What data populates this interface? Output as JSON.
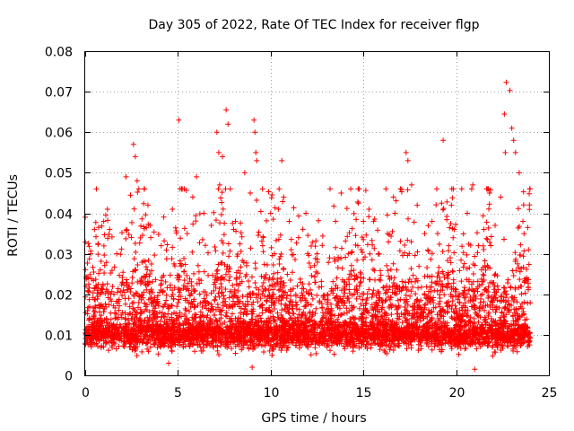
{
  "chart_data": {
    "type": "scatter",
    "title": "Day 305 of 2022, Rate Of TEC Index for receiver flgp",
    "xlabel": "GPS time / hours",
    "ylabel": "ROTI / TECUs",
    "xlim": [
      0,
      25
    ],
    "ylim": [
      0,
      0.08
    ],
    "xticks": [
      0,
      5,
      10,
      15,
      20,
      25
    ],
    "xtick_labels": [
      "0",
      "5",
      "10",
      "15",
      "20",
      "25"
    ],
    "yticks": [
      0,
      0.01,
      0.02,
      0.03,
      0.04,
      0.05,
      0.06,
      0.07,
      0.08
    ],
    "ytick_labels": [
      "0",
      "0.01",
      "0.02",
      "0.03",
      "0.04",
      "0.05",
      "0.06",
      "0.07",
      "0.08"
    ],
    "grid": true,
    "marker": "plus",
    "color": "#ff0000",
    "x_data_range": [
      0,
      24
    ],
    "note": "dense cloud of ROTI points; representative notable values listed",
    "series": [
      {
        "name": "ROTI",
        "points": [
          [
            0.1,
            0.012
          ],
          [
            0.3,
            0.03
          ],
          [
            0.5,
            0.036
          ],
          [
            0.8,
            0.02
          ],
          [
            1.0,
            0.038
          ],
          [
            1.2,
            0.041
          ],
          [
            1.7,
            0.03
          ],
          [
            2.2,
            0.049
          ],
          [
            2.6,
            0.057
          ],
          [
            2.7,
            0.054
          ],
          [
            2.8,
            0.048
          ],
          [
            3.5,
            0.037
          ],
          [
            4.1,
            0.032
          ],
          [
            4.7,
            0.041
          ],
          [
            5.05,
            0.063
          ],
          [
            5.5,
            0.035
          ],
          [
            5.8,
            0.044
          ],
          [
            6.0,
            0.049
          ],
          [
            6.4,
            0.04
          ],
          [
            6.8,
            0.037
          ],
          [
            7.1,
            0.06
          ],
          [
            7.2,
            0.055
          ],
          [
            7.25,
            0.047
          ],
          [
            7.4,
            0.054
          ],
          [
            7.6,
            0.0655
          ],
          [
            7.7,
            0.062
          ],
          [
            8.1,
            0.038
          ],
          [
            8.6,
            0.05
          ],
          [
            8.9,
            0.045
          ],
          [
            9.1,
            0.063
          ],
          [
            9.15,
            0.06
          ],
          [
            9.2,
            0.055
          ],
          [
            9.25,
            0.053
          ],
          [
            9.6,
            0.034
          ],
          [
            10.0,
            0.04
          ],
          [
            10.2,
            0.03
          ],
          [
            10.6,
            0.053
          ],
          [
            10.7,
            0.044
          ],
          [
            11.0,
            0.038
          ],
          [
            11.5,
            0.034
          ],
          [
            11.9,
            0.04
          ],
          [
            12.5,
            0.03
          ],
          [
            13.2,
            0.046
          ],
          [
            13.5,
            0.038
          ],
          [
            13.8,
            0.045
          ],
          [
            14.2,
            0.03
          ],
          [
            14.7,
            0.032
          ],
          [
            15.0,
            0.038
          ],
          [
            15.3,
            0.041
          ],
          [
            15.8,
            0.03
          ],
          [
            16.3,
            0.035
          ],
          [
            16.7,
            0.04
          ],
          [
            17.0,
            0.046
          ],
          [
            17.3,
            0.055
          ],
          [
            17.4,
            0.053
          ],
          [
            17.6,
            0.047
          ],
          [
            17.9,
            0.042
          ],
          [
            18.3,
            0.035
          ],
          [
            18.7,
            0.038
          ],
          [
            19.0,
            0.035
          ],
          [
            19.3,
            0.058
          ],
          [
            19.6,
            0.032
          ],
          [
            19.9,
            0.036
          ],
          [
            20.3,
            0.046
          ],
          [
            20.6,
            0.04
          ],
          [
            20.9,
            0.047
          ],
          [
            21.2,
            0.032
          ],
          [
            21.5,
            0.036
          ],
          [
            21.8,
            0.045
          ],
          [
            22.1,
            0.037
          ],
          [
            22.4,
            0.044
          ],
          [
            22.7,
            0.0723
          ],
          [
            22.9,
            0.0703
          ],
          [
            22.6,
            0.0645
          ],
          [
            22.65,
            0.055
          ],
          [
            23.0,
            0.061
          ],
          [
            23.1,
            0.058
          ],
          [
            23.2,
            0.055
          ],
          [
            23.4,
            0.05
          ],
          [
            23.6,
            0.038
          ],
          [
            23.9,
            0.031
          ],
          [
            21.0,
            0.0015
          ],
          [
            9.0,
            0.002
          ],
          [
            4.5,
            0.003
          ]
        ]
      }
    ]
  }
}
